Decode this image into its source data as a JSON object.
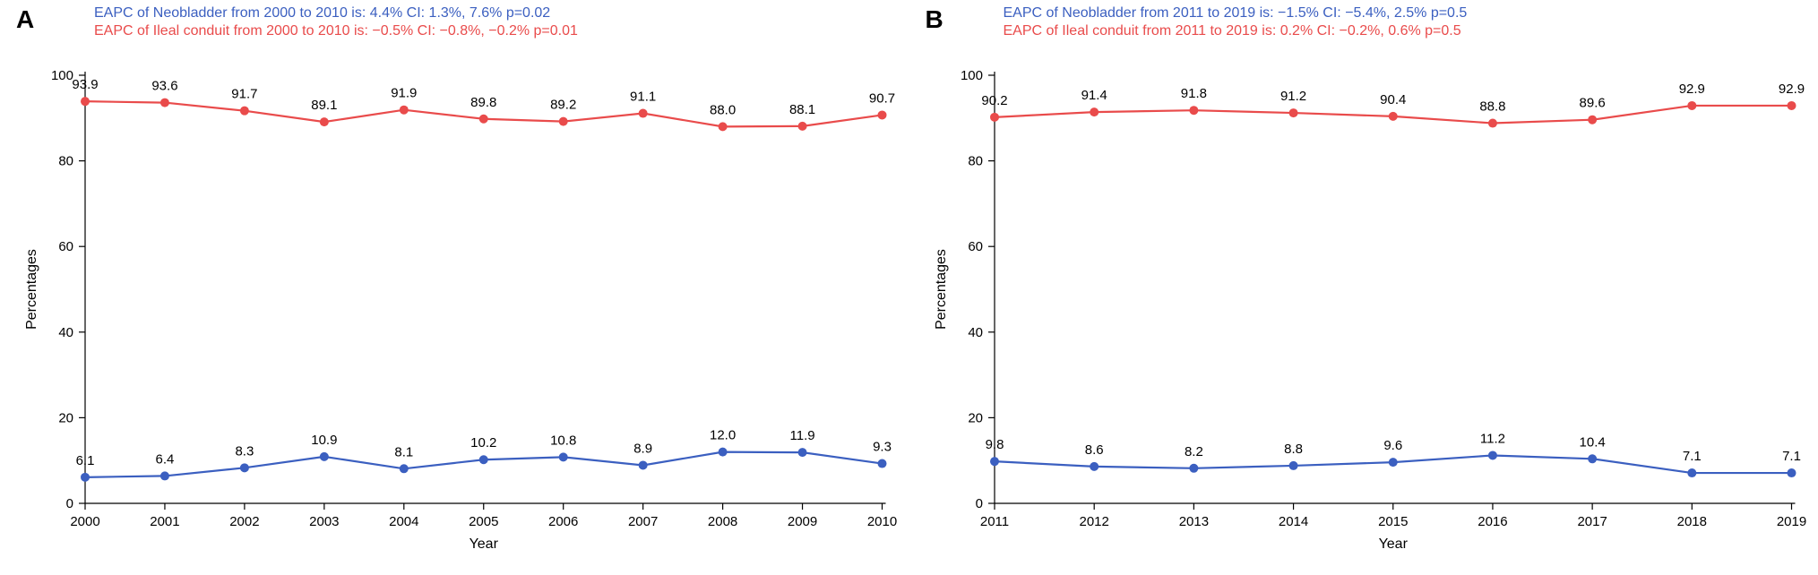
{
  "layout": {
    "total_width": 2029,
    "total_height": 642,
    "panel_label_fontsize": 28,
    "caption_fontsize": 16,
    "axis_label_fontsize": 16,
    "tick_fontsize": 15,
    "value_label_fontsize": 15
  },
  "colors": {
    "neobladder": "#3b5fc0",
    "ileal": "#e94b4b",
    "axis": "#000000",
    "value_label": "#000000",
    "background": "#ffffff"
  },
  "panels": [
    {
      "id": "A",
      "label": "A",
      "captions": [
        {
          "text": "EAPC of Neobladder from 2000 to 2010 is: 4.4% CI: 1.3%, 7.6% p=0.02",
          "color_key": "neobladder"
        },
        {
          "text": "EAPC of Ileal conduit from 2000 to 2010 is: −0.5% CI: −0.8%, −0.2% p=0.01",
          "color_key": "ileal"
        }
      ],
      "xlabel": "Year",
      "ylabel": "Percentages",
      "x_values": [
        2000,
        2001,
        2002,
        2003,
        2004,
        2005,
        2006,
        2007,
        2008,
        2009,
        2010
      ],
      "y_ticks": [
        0,
        20,
        40,
        60,
        80,
        100
      ],
      "ylim": [
        0,
        100
      ],
      "series": [
        {
          "name": "ileal",
          "color_key": "ileal",
          "values": [
            93.9,
            93.6,
            91.7,
            89.1,
            91.9,
            89.8,
            89.2,
            91.1,
            88.0,
            88.1,
            90.7
          ],
          "label_position": "above"
        },
        {
          "name": "neobladder",
          "color_key": "neobladder",
          "values": [
            6.1,
            6.4,
            8.3,
            10.9,
            8.1,
            10.2,
            10.8,
            8.9,
            12.0,
            11.9,
            9.3
          ],
          "label_position": "above"
        }
      ]
    },
    {
      "id": "B",
      "label": "B",
      "captions": [
        {
          "text": "EAPC of Neobladder from 2011 to 2019 is: −1.5% CI: −5.4%,  2.5% p=0.5",
          "color_key": "neobladder"
        },
        {
          "text": "EAPC of Ileal conduit from 2011 to 2019 is: 0.2% CI: −0.2%,  0.6% p=0.5",
          "color_key": "ileal"
        }
      ],
      "xlabel": "Year",
      "ylabel": "Percentages",
      "x_values": [
        2011,
        2012,
        2013,
        2014,
        2015,
        2016,
        2017,
        2018,
        2019
      ],
      "y_ticks": [
        0,
        20,
        40,
        60,
        80,
        100
      ],
      "ylim": [
        0,
        100
      ],
      "series": [
        {
          "name": "ileal",
          "color_key": "ileal",
          "values": [
            90.2,
            91.4,
            91.8,
            91.2,
            90.4,
            88.8,
            89.6,
            92.9,
            92.9
          ],
          "label_position": "above"
        },
        {
          "name": "neobladder",
          "color_key": "neobladder",
          "values": [
            9.8,
            8.6,
            8.2,
            8.8,
            9.6,
            11.2,
            10.4,
            7.1,
            7.1
          ],
          "label_position": "above"
        }
      ]
    }
  ],
  "chart_style": {
    "marker_radius": 5,
    "line_width": 2.2,
    "tick_length": 7
  }
}
